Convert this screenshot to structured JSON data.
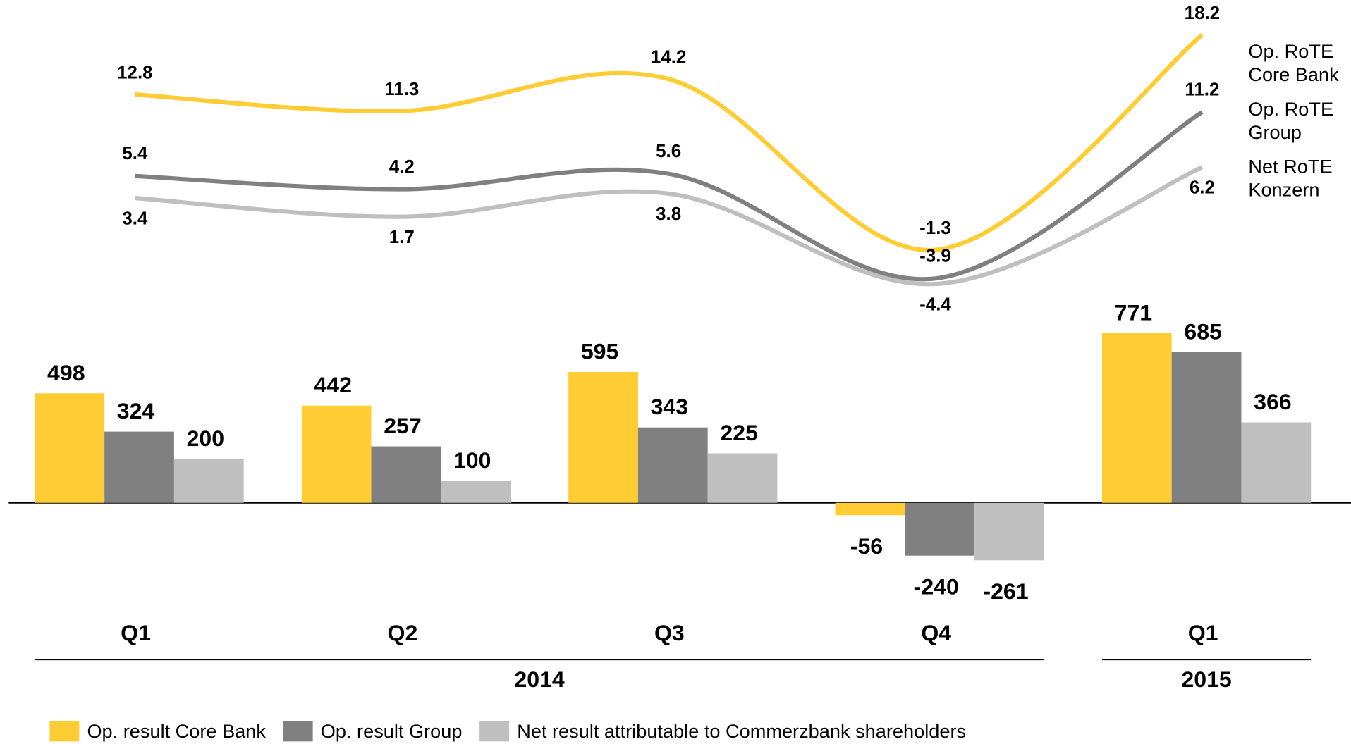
{
  "chart_data": [
    {
      "type": "line",
      "series": [
        {
          "name": "Op. RoTE Core Bank",
          "color": "#FFCC33",
          "values": [
            12.8,
            11.3,
            14.2,
            -1.3,
            18.2
          ]
        },
        {
          "name": "Op. RoTE Group",
          "color": "#808080",
          "values": [
            5.4,
            4.2,
            5.6,
            -3.9,
            11.2
          ]
        },
        {
          "name": "Net RoTE Konzern",
          "color": "#BFBFBF",
          "values": [
            3.4,
            1.7,
            3.8,
            -4.4,
            6.2
          ]
        }
      ]
    },
    {
      "type": "bar",
      "categories": [
        "Q1",
        "Q2",
        "Q3",
        "Q4",
        "Q1"
      ],
      "x_groups": [
        {
          "label": "2014",
          "count": 4
        },
        {
          "label": "2015",
          "count": 1
        }
      ],
      "series": [
        {
          "name": "Op. result Core Bank",
          "color": "#FFCC33",
          "values": [
            498,
            442,
            595,
            -56,
            771
          ]
        },
        {
          "name": "Op. result Group",
          "color": "#808080",
          "values": [
            324,
            257,
            343,
            -240,
            685
          ]
        },
        {
          "name": "Net result attributable to Commerzbank shareholders",
          "color": "#BFBFBF",
          "values": [
            200,
            100,
            225,
            -261,
            366
          ]
        }
      ]
    }
  ]
}
